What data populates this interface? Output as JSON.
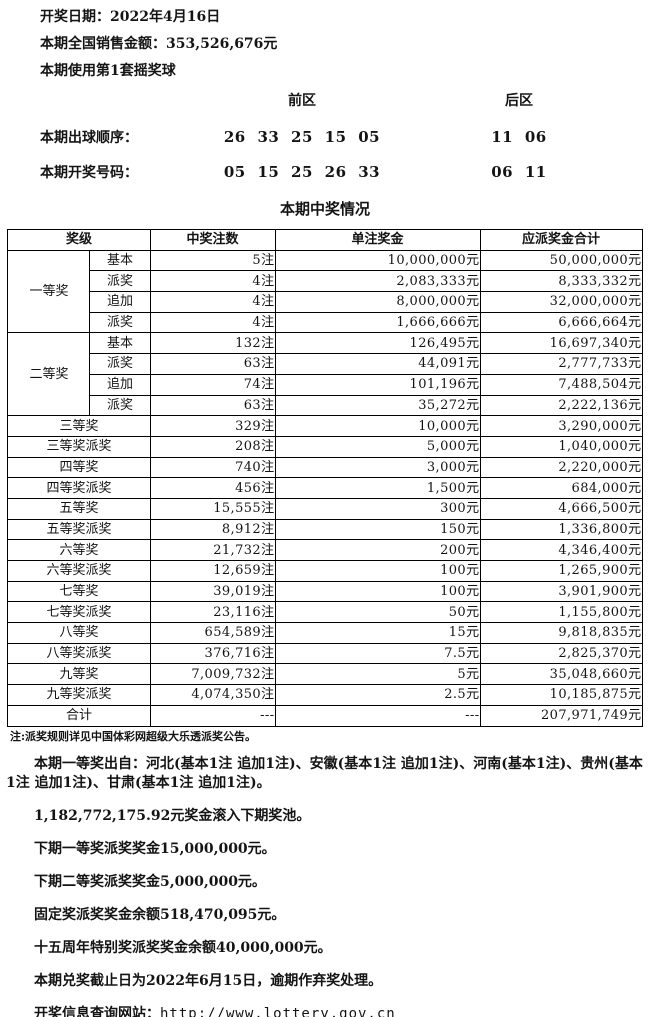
{
  "info": {
    "draw_date": "开奖日期：2022年4月16日",
    "sales": "本期全国销售金额：353,526,676元",
    "ball_set": "本期使用第1套摇奖球"
  },
  "numbers": {
    "front_label": "前区",
    "back_label": "后区",
    "order_label": "本期出球顺序：",
    "order_front": "26 33 25 15 05",
    "order_back": "11 06",
    "result_label": "本期开奖号码：",
    "result_front": "05 15 25 26 33",
    "result_back": "06 11"
  },
  "table": {
    "title": "本期中奖情况",
    "headers": [
      "奖级",
      "中奖注数",
      "单注奖金",
      "应派奖金合计"
    ],
    "groups": [
      {
        "name": "一等奖",
        "rows": [
          {
            "sub": "基本",
            "count": "5注",
            "prize": "10,000,000元",
            "total": "50,000,000元"
          },
          {
            "sub": "派奖",
            "count": "4注",
            "prize": "2,083,333元",
            "total": "8,333,332元"
          },
          {
            "sub": "追加",
            "count": "4注",
            "prize": "8,000,000元",
            "total": "32,000,000元"
          },
          {
            "sub": "派奖",
            "count": "4注",
            "prize": "1,666,666元",
            "total": "6,666,664元"
          }
        ]
      },
      {
        "name": "二等奖",
        "rows": [
          {
            "sub": "基本",
            "count": "132注",
            "prize": "126,495元",
            "total": "16,697,340元"
          },
          {
            "sub": "派奖",
            "count": "63注",
            "prize": "44,091元",
            "total": "2,777,733元"
          },
          {
            "sub": "追加",
            "count": "74注",
            "prize": "101,196元",
            "total": "7,488,504元"
          },
          {
            "sub": "派奖",
            "count": "63注",
            "prize": "35,272元",
            "total": "2,222,136元"
          }
        ]
      }
    ],
    "rows": [
      {
        "name": "三等奖",
        "count": "329注",
        "prize": "10,000元",
        "total": "3,290,000元"
      },
      {
        "name": "三等奖派奖",
        "count": "208注",
        "prize": "5,000元",
        "total": "1,040,000元"
      },
      {
        "name": "四等奖",
        "count": "740注",
        "prize": "3,000元",
        "total": "2,220,000元"
      },
      {
        "name": "四等奖派奖",
        "count": "456注",
        "prize": "1,500元",
        "total": "684,000元"
      },
      {
        "name": "五等奖",
        "count": "15,555注",
        "prize": "300元",
        "total": "4,666,500元"
      },
      {
        "name": "五等奖派奖",
        "count": "8,912注",
        "prize": "150元",
        "total": "1,336,800元"
      },
      {
        "name": "六等奖",
        "count": "21,732注",
        "prize": "200元",
        "total": "4,346,400元"
      },
      {
        "name": "六等奖派奖",
        "count": "12,659注",
        "prize": "100元",
        "total": "1,265,900元"
      },
      {
        "name": "七等奖",
        "count": "39,019注",
        "prize": "100元",
        "total": "3,901,900元"
      },
      {
        "name": "七等奖派奖",
        "count": "23,116注",
        "prize": "50元",
        "total": "1,155,800元"
      },
      {
        "name": "八等奖",
        "count": "654,589注",
        "prize": "15元",
        "total": "9,818,835元"
      },
      {
        "name": "八等奖派奖",
        "count": "376,716注",
        "prize": "7.5元",
        "total": "2,825,370元"
      },
      {
        "name": "九等奖",
        "count": "7,009,732注",
        "prize": "5元",
        "total": "35,048,660元"
      },
      {
        "name": "九等奖派奖",
        "count": "4,074,350注",
        "prize": "2.5元",
        "total": "10,185,875元"
      }
    ],
    "total_row": {
      "name": "合计",
      "count": "---",
      "prize": "---",
      "total": "207,971,749元"
    }
  },
  "notes": {
    "table_note": "注:派奖规则详见中国体彩网超级大乐透派奖公告。",
    "origin": "本期一等奖出自：河北(基本1注 追加1注)、安徽(基本1注 追加1注)、河南(基本1注)、贵州(基本1注 追加1注)、甘肃(基本1注 追加1注)。",
    "rollover": "1,182,772,175.92元奖金滚入下期奖池。",
    "next_first": "下期一等奖派奖奖金15,000,000元。",
    "next_second": "下期二等奖派奖奖金5,000,000元。",
    "fixed_balance": "固定奖派奖奖金余额518,470,095元。",
    "anniversary": "十五周年特别奖派奖奖金余额40,000,000元。",
    "deadline": "本期兑奖截止日为2022年6月15日，逾期作弃奖处理。",
    "website_label": "开奖信息查询网站：",
    "website_url": "http://www.lottery.gov.cn"
  }
}
